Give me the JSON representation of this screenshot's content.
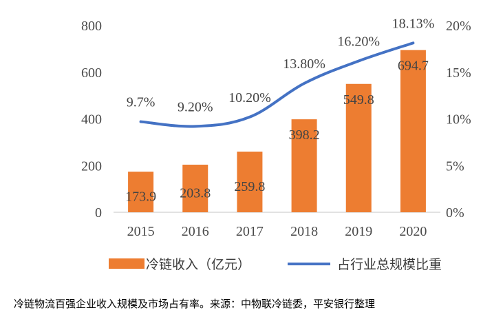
{
  "chart_data": {
    "type": "bar+line",
    "categories": [
      "2015",
      "2016",
      "2017",
      "2018",
      "2019",
      "2020"
    ],
    "series": [
      {
        "name": "冷链收入（亿元）",
        "type": "bar",
        "axis": "left",
        "values": [
          173.9,
          203.8,
          259.8,
          398.2,
          549.8,
          694.7
        ],
        "labels": [
          "173.9",
          "203.8",
          "259.8",
          "398.2",
          "549.8",
          "694.7"
        ]
      },
      {
        "name": "占行业总规模比重",
        "type": "line",
        "axis": "right",
        "values": [
          9.7,
          9.2,
          10.2,
          13.8,
          16.2,
          18.13
        ],
        "labels": [
          "9.7%",
          "9.20%",
          "10.20%",
          "13.80%",
          "16.20%",
          "18.13%"
        ]
      }
    ],
    "y_left": {
      "ticks": [
        "0",
        "200",
        "400",
        "600",
        "800"
      ],
      "ylim": [
        0,
        800
      ]
    },
    "y_right": {
      "ticks": [
        "0%",
        "5%",
        "10%",
        "15%",
        "20%"
      ],
      "ylim": [
        0,
        20
      ]
    },
    "grid": false,
    "legend": "bottom",
    "colors": {
      "bar": "#ED7D31",
      "line": "#4472C4"
    }
  },
  "caption": "冷链物流百强企业收入规模及市场占有率。来源：中物联冷链委，平安银行整理"
}
